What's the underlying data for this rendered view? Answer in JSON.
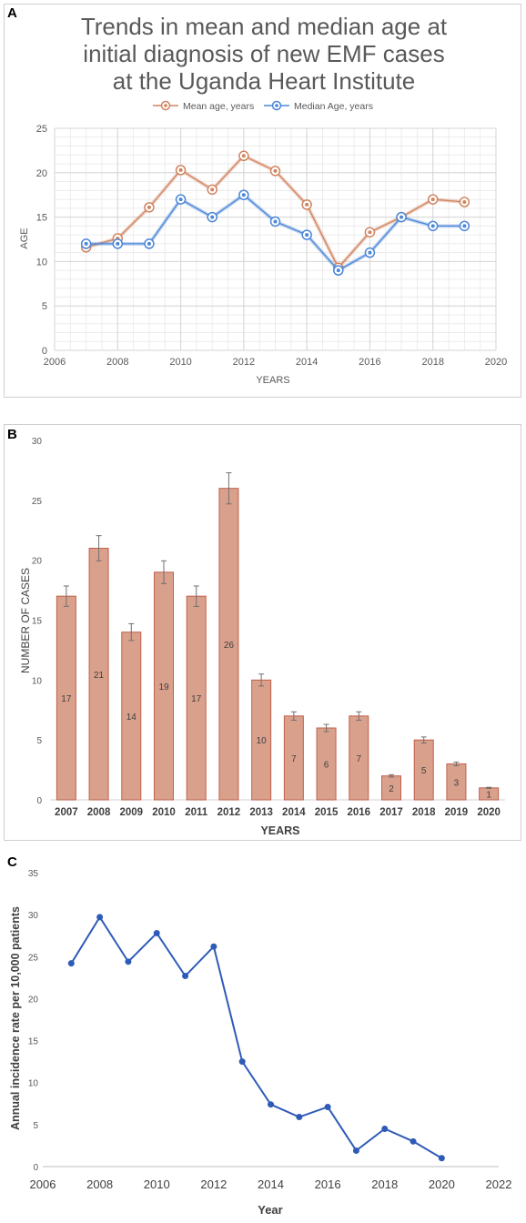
{
  "panels": [
    {
      "letter": "A"
    },
    {
      "letter": "B"
    },
    {
      "letter": "C"
    }
  ],
  "chart_data": [
    {
      "type": "line",
      "title": "Trends in mean and median age at initial diagnosis of new EMF cases at the Uganda Heart Institute",
      "title_lines": [
        "Trends in mean and median age at",
        "initial diagnosis of new EMF cases",
        "at the Uganda Heart Institute"
      ],
      "xlabel": "YEARS",
      "ylabel": "AGE",
      "xlim": [
        2006,
        2020
      ],
      "ylim": [
        0,
        25
      ],
      "x_ticks": [
        2006,
        2008,
        2010,
        2012,
        2014,
        2016,
        2018,
        2020
      ],
      "y_ticks": [
        0,
        5,
        10,
        15,
        20,
        25
      ],
      "grid": true,
      "legend_position": "top",
      "x": [
        2007,
        2008,
        2009,
        2010,
        2011,
        2012,
        2013,
        2014,
        2015,
        2016,
        2017,
        2018,
        2019
      ],
      "series": [
        {
          "name": "Mean age, years",
          "color": "#d0845f",
          "values": [
            11.6,
            12.6,
            16.1,
            20.3,
            18.1,
            21.9,
            20.2,
            16.4,
            9.3,
            13.3,
            15.0,
            17.0,
            16.7
          ]
        },
        {
          "name": "Median Age, years",
          "color": "#4a86d8",
          "values": [
            12,
            12,
            12,
            17,
            15,
            17.5,
            14.5,
            13,
            9,
            11,
            15,
            14,
            14
          ]
        }
      ]
    },
    {
      "type": "bar",
      "xlabel": "YEARS",
      "ylabel": "NUMBER OF CASES",
      "ylim": [
        0,
        30
      ],
      "y_ticks": [
        0,
        5,
        10,
        15,
        20,
        25,
        30
      ],
      "grid": false,
      "bar_color": "#d9a08c",
      "bar_edge_color": "#c0604a",
      "categories": [
        "2007",
        "2008",
        "2009",
        "2010",
        "2011",
        "2012",
        "2013",
        "2014",
        "2015",
        "2016",
        "2017",
        "2018",
        "2019",
        "2020"
      ],
      "values": [
        17,
        21,
        14,
        19,
        17,
        26,
        10,
        7,
        6,
        7,
        2,
        5,
        3,
        1
      ],
      "data_labels": [
        "17",
        "21",
        "14",
        "19",
        "17",
        "26",
        "10",
        "7",
        "6",
        "7",
        "2",
        "5",
        "3",
        "1"
      ],
      "error": [
        0.85,
        1.05,
        0.7,
        0.95,
        0.85,
        1.3,
        0.5,
        0.35,
        0.3,
        0.35,
        0.1,
        0.25,
        0.15,
        0.05
      ]
    },
    {
      "type": "line",
      "xlabel": "Year",
      "ylabel": "Annual incidence rate per 10,000 patients",
      "xlim": [
        2006,
        2022
      ],
      "ylim": [
        0,
        35
      ],
      "x_ticks": [
        2006,
        2008,
        2010,
        2012,
        2014,
        2016,
        2018,
        2020,
        2022
      ],
      "y_ticks": [
        0,
        5,
        10,
        15,
        20,
        25,
        30,
        35
      ],
      "grid": false,
      "x": [
        2007,
        2008,
        2009,
        2010,
        2011,
        2012,
        2013,
        2014,
        2015,
        2016,
        2017,
        2018,
        2019,
        2020
      ],
      "series": [
        {
          "color": "#2f5bb8",
          "values": [
            24.2,
            29.7,
            24.4,
            27.8,
            22.7,
            26.2,
            12.5,
            7.4,
            5.9,
            7.1,
            1.9,
            4.5,
            3.0,
            1.0
          ]
        }
      ]
    }
  ]
}
